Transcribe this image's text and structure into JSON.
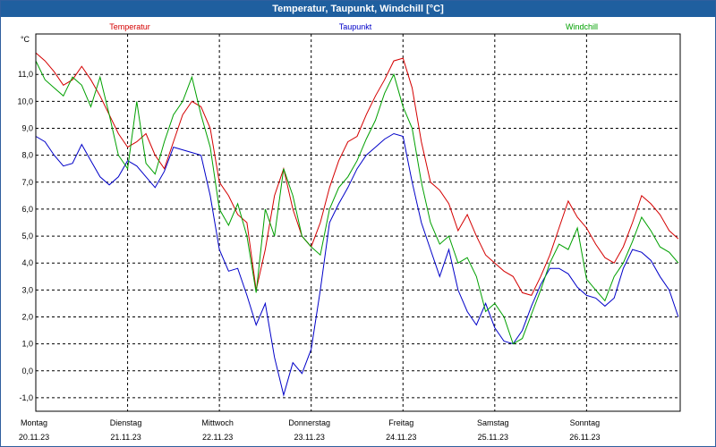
{
  "chart_data": {
    "type": "line",
    "title": "Temperatur, Taupunkt, Windchill [°C]",
    "ylabel": "°C",
    "ylim": [
      -1.5,
      12.5
    ],
    "y_ticks": [
      "-1,0",
      "0,0",
      "1,0",
      "2,0",
      "3,0",
      "4,0",
      "5,0",
      "6,0",
      "7,0",
      "8,0",
      "9,0",
      "10,0",
      "11,0"
    ],
    "day_labels": [
      {
        "day": "Montag",
        "date": "20.11.23"
      },
      {
        "day": "Dienstag",
        "date": "21.11.23"
      },
      {
        "day": "Mittwoch",
        "date": "22.11.23"
      },
      {
        "day": "Donnerstag",
        "date": "23.11.23"
      },
      {
        "day": "Freitag",
        "date": "24.11.23"
      },
      {
        "day": "Samstag",
        "date": "25.11.23"
      },
      {
        "day": "Sonntag",
        "date": "26.11.23"
      }
    ],
    "x_range": [
      0,
      7.02
    ],
    "series": [
      {
        "name": "Temperatur",
        "color": "#d40000",
        "x": [
          0,
          0.1,
          0.2,
          0.3,
          0.4,
          0.5,
          0.6,
          0.7,
          0.8,
          0.9,
          1.0,
          1.1,
          1.2,
          1.3,
          1.4,
          1.5,
          1.6,
          1.7,
          1.8,
          1.9,
          2.0,
          2.1,
          2.2,
          2.3,
          2.4,
          2.5,
          2.6,
          2.7,
          2.8,
          2.9,
          3.0,
          3.1,
          3.2,
          3.3,
          3.4,
          3.5,
          3.6,
          3.7,
          3.8,
          3.9,
          4.0,
          4.1,
          4.2,
          4.3,
          4.4,
          4.5,
          4.6,
          4.7,
          4.8,
          4.9,
          5.0,
          5.1,
          5.2,
          5.3,
          5.4,
          5.5,
          5.6,
          5.7,
          5.8,
          5.9,
          6.0,
          6.1,
          6.2,
          6.3,
          6.4,
          6.5,
          6.6,
          6.7,
          6.8,
          6.9,
          7.0
        ],
        "values": [
          11.8,
          11.5,
          11.1,
          10.6,
          10.8,
          11.3,
          10.8,
          10.2,
          9.5,
          8.8,
          8.3,
          8.5,
          8.8,
          8.0,
          7.5,
          8.5,
          9.5,
          10.0,
          9.8,
          9.0,
          7.0,
          6.5,
          5.8,
          5.5,
          3.0,
          4.5,
          6.5,
          7.5,
          6.0,
          5.0,
          4.6,
          5.5,
          6.8,
          7.8,
          8.5,
          8.7,
          9.5,
          10.2,
          10.8,
          11.5,
          11.6,
          10.5,
          8.5,
          7.0,
          6.7,
          6.2,
          5.2,
          5.8,
          5.0,
          4.3,
          4.0,
          3.7,
          3.5,
          2.9,
          2.8,
          3.5,
          4.3,
          5.3,
          6.3,
          5.7,
          5.3,
          4.7,
          4.2,
          4.0,
          4.6,
          5.5,
          6.5,
          6.2,
          5.8,
          5.2,
          4.9
        ]
      },
      {
        "name": "Taupunkt",
        "color": "#0000c8",
        "x": [
          0,
          0.1,
          0.2,
          0.3,
          0.4,
          0.5,
          0.6,
          0.7,
          0.8,
          0.9,
          1.0,
          1.1,
          1.2,
          1.3,
          1.4,
          1.5,
          1.6,
          1.7,
          1.8,
          1.9,
          2.0,
          2.1,
          2.2,
          2.3,
          2.4,
          2.5,
          2.6,
          2.7,
          2.8,
          2.9,
          3.0,
          3.1,
          3.2,
          3.3,
          3.4,
          3.5,
          3.6,
          3.7,
          3.8,
          3.9,
          4.0,
          4.1,
          4.2,
          4.3,
          4.4,
          4.5,
          4.6,
          4.7,
          4.8,
          4.9,
          5.0,
          5.1,
          5.2,
          5.3,
          5.4,
          5.5,
          5.6,
          5.7,
          5.8,
          5.9,
          6.0,
          6.1,
          6.2,
          6.3,
          6.4,
          6.5,
          6.6,
          6.7,
          6.8,
          6.9,
          7.0
        ],
        "values": [
          8.7,
          8.5,
          8.0,
          7.6,
          7.7,
          8.4,
          7.8,
          7.2,
          6.9,
          7.2,
          7.8,
          7.6,
          7.2,
          6.8,
          7.4,
          8.3,
          8.2,
          8.1,
          8.0,
          6.5,
          4.5,
          3.7,
          3.8,
          2.8,
          1.7,
          2.5,
          0.5,
          -0.9,
          0.3,
          -0.1,
          0.8,
          3.0,
          5.5,
          6.2,
          6.8,
          7.5,
          8.0,
          8.3,
          8.6,
          8.8,
          8.7,
          7.0,
          5.5,
          4.5,
          3.5,
          4.5,
          3.0,
          2.2,
          1.7,
          2.5,
          1.6,
          1.1,
          1.0,
          1.5,
          2.4,
          3.2,
          3.8,
          3.8,
          3.6,
          3.1,
          2.8,
          2.7,
          2.4,
          2.7,
          3.8,
          4.5,
          4.4,
          4.1,
          3.5,
          3.0,
          2.0
        ]
      },
      {
        "name": "Windchill",
        "color": "#00a000",
        "x": [
          0,
          0.1,
          0.2,
          0.3,
          0.4,
          0.5,
          0.6,
          0.7,
          0.8,
          0.9,
          1.0,
          1.1,
          1.2,
          1.3,
          1.4,
          1.5,
          1.6,
          1.7,
          1.8,
          1.9,
          2.0,
          2.1,
          2.2,
          2.3,
          2.4,
          2.5,
          2.6,
          2.7,
          2.8,
          2.9,
          3.0,
          3.1,
          3.2,
          3.3,
          3.4,
          3.5,
          3.6,
          3.7,
          3.8,
          3.9,
          4.0,
          4.1,
          4.2,
          4.3,
          4.4,
          4.5,
          4.6,
          4.7,
          4.8,
          4.9,
          5.0,
          5.1,
          5.2,
          5.3,
          5.4,
          5.5,
          5.6,
          5.7,
          5.8,
          5.9,
          6.0,
          6.1,
          6.2,
          6.3,
          6.4,
          6.5,
          6.6,
          6.7,
          6.8,
          6.9,
          7.0
        ],
        "values": [
          11.5,
          10.8,
          10.5,
          10.2,
          10.9,
          10.6,
          9.8,
          10.9,
          9.5,
          8.0,
          7.5,
          10.0,
          7.7,
          7.3,
          8.5,
          9.5,
          10.0,
          10.9,
          9.5,
          8.3,
          6.0,
          5.4,
          6.2,
          5.0,
          2.9,
          6.0,
          5.0,
          7.5,
          6.5,
          5.0,
          4.6,
          4.3,
          6.0,
          6.8,
          7.2,
          7.8,
          8.6,
          9.3,
          10.3,
          11.0,
          9.8,
          9.0,
          7.0,
          5.5,
          4.7,
          5.0,
          4.0,
          4.2,
          3.5,
          2.2,
          2.5,
          2.0,
          1.0,
          1.2,
          2.1,
          3.0,
          4.0,
          4.7,
          4.5,
          5.3,
          3.4,
          3.0,
          2.6,
          3.5,
          4.0,
          4.8,
          5.7,
          5.2,
          4.6,
          4.4,
          4.0
        ]
      }
    ]
  }
}
